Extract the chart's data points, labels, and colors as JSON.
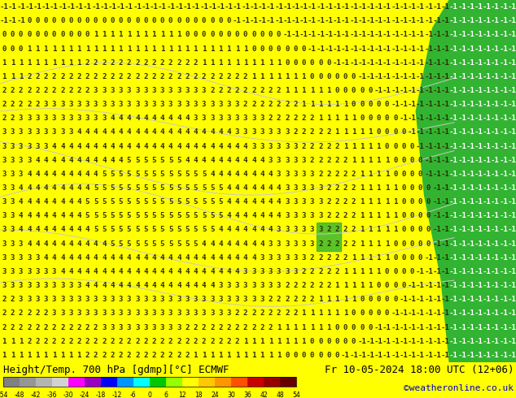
{
  "title_left": "Height/Temp. 700 hPa [gdmp][°C] ECMWF",
  "title_right": "Fr 10-05-2024 18:00 UTC (12+06)",
  "credit": "©weatheronline.co.uk",
  "colorbar_tick_labels": [
    "-54",
    "-48",
    "-42",
    "-36",
    "-30",
    "-24",
    "-18",
    "-12",
    "-6",
    "0",
    "6",
    "12",
    "18",
    "24",
    "30",
    "36",
    "42",
    "48",
    "54"
  ],
  "colorbar_colors": [
    "#808080",
    "#969696",
    "#b4b4b4",
    "#d2d2d2",
    "#ff00ff",
    "#9600be",
    "#0000ff",
    "#0096ff",
    "#00ffff",
    "#00c800",
    "#96ff00",
    "#ffff00",
    "#ffc800",
    "#ff9600",
    "#ff5000",
    "#c80000",
    "#960000",
    "#640000"
  ],
  "bg_color": "#ffff00",
  "yellow_map": "#ffff00",
  "green_land": "#32b432",
  "contour_line_color": "#c8c8c8",
  "text_color": "#000000",
  "credit_color": "#0000cc",
  "title_fontsize": 9,
  "credit_fontsize": 8,
  "number_fontsize": 6.5,
  "number_color": "#2d2d00",
  "number_color_green": "#ffffff",
  "map_rows": 26,
  "map_cols": 62
}
